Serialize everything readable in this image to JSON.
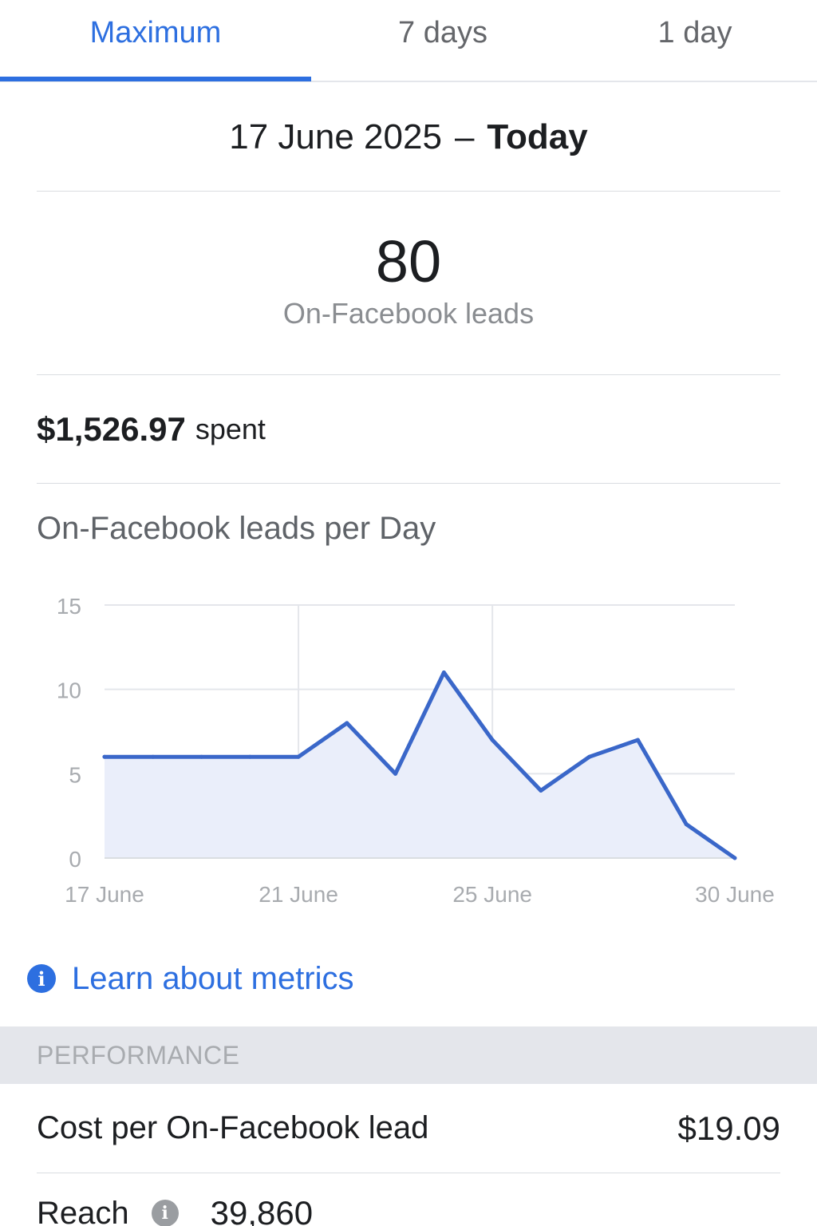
{
  "tabs": [
    {
      "label": "Maximum",
      "active": true
    },
    {
      "label": "7 days",
      "active": false
    },
    {
      "label": "1 day",
      "active": false
    }
  ],
  "date_range": {
    "from": "17 June 2025",
    "separator": "–",
    "to": "Today"
  },
  "headline": {
    "value": "80",
    "label": "On-Facebook leads"
  },
  "spent": {
    "amount": "$1,526.97",
    "word": "spent"
  },
  "chart_title": "On-Facebook leads per Day",
  "chart_data": {
    "type": "area",
    "title": "On-Facebook leads per Day",
    "x": [
      "17 June",
      "18 June",
      "19 June",
      "20 June",
      "21 June",
      "22 June",
      "23 June",
      "24 June",
      "25 June",
      "26 June",
      "27 June",
      "28 June",
      "29 June",
      "30 June"
    ],
    "values": [
      6,
      6,
      6,
      6,
      6,
      8,
      5,
      11,
      7,
      4,
      6,
      7,
      2,
      0
    ],
    "x_ticks": [
      "17 June",
      "21 June",
      "25 June",
      "30 June"
    ],
    "y_ticks": [
      0,
      5,
      10,
      15
    ],
    "ylim": [
      0,
      15
    ],
    "grid": true,
    "colors": {
      "line": "#3a67c9",
      "fill": "#eaeefa",
      "grid": "#e4e6eb",
      "tick": "#a8abaf"
    }
  },
  "learn_link": "Learn about metrics",
  "performance": {
    "header": "PERFORMANCE",
    "cost_per_lead_label": "Cost per On-Facebook lead",
    "cost_per_lead_value": "$19.09",
    "reach_label": "Reach",
    "reach_value": "39,860"
  },
  "colors": {
    "accent": "#2d6fe0",
    "muted_text": "#8a8d91",
    "section_bg": "#e4e6eb"
  },
  "icons": [
    "info-icon",
    "reach-info-icon"
  ]
}
